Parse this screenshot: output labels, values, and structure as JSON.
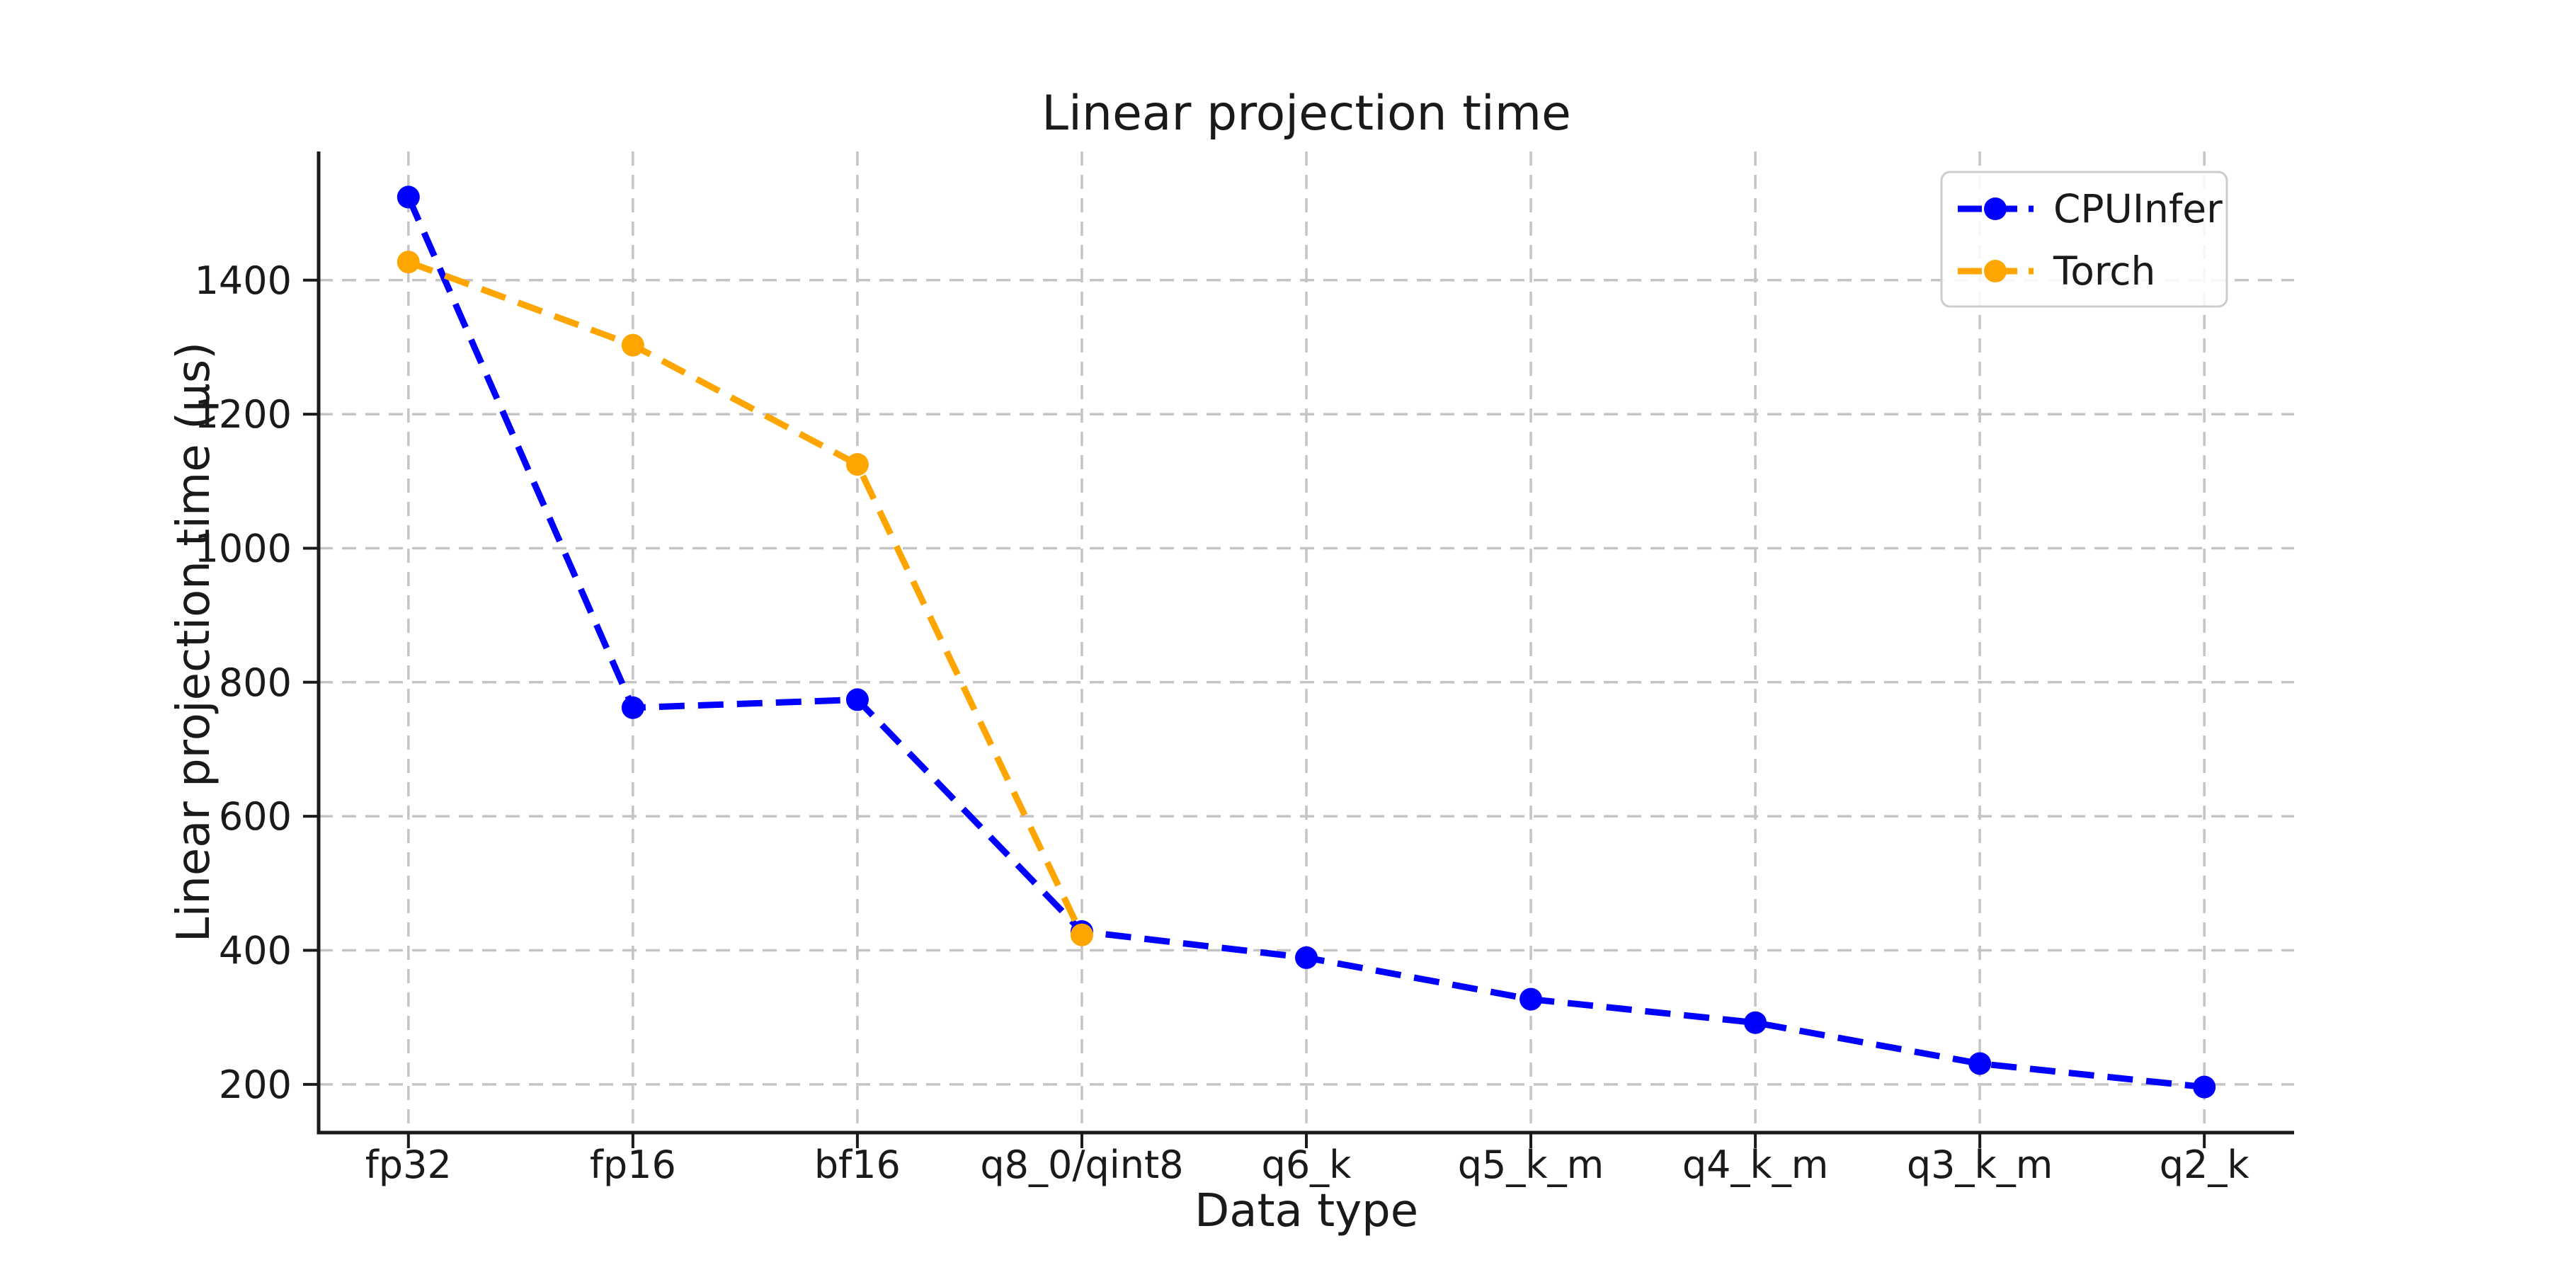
{
  "figure": {
    "background": "#ffffff",
    "text_color": "#1a1a1a",
    "grid_color": "#c4c4c4",
    "spine_color": "#1a1a1a",
    "legend_border_color": "#cccccc"
  },
  "chart_data": {
    "type": "line",
    "title": "Linear projection time",
    "xlabel": "Data type",
    "ylabel": "Linear projection time (μs)",
    "categories": [
      "fp32",
      "fp16",
      "bf16",
      "q8_0/qint8",
      "q6_k",
      "q5_k_m",
      "q4_k_m",
      "q3_k_m",
      "q2_k"
    ],
    "yticks": [
      200,
      400,
      600,
      800,
      1000,
      1200,
      1400
    ],
    "ylim": [
      128,
      1592
    ],
    "grid": true,
    "line_style": "dashed",
    "marker": "circle",
    "legend_position": "upper right",
    "series": [
      {
        "name": "CPUInfer",
        "color": "#0000ff",
        "values": [
          1524,
          762,
          774,
          428,
          389,
          327,
          292,
          231,
          196
        ]
      },
      {
        "name": "Torch",
        "color": "#ffa500",
        "values": [
          1427,
          1303,
          1125,
          423
        ]
      }
    ]
  }
}
